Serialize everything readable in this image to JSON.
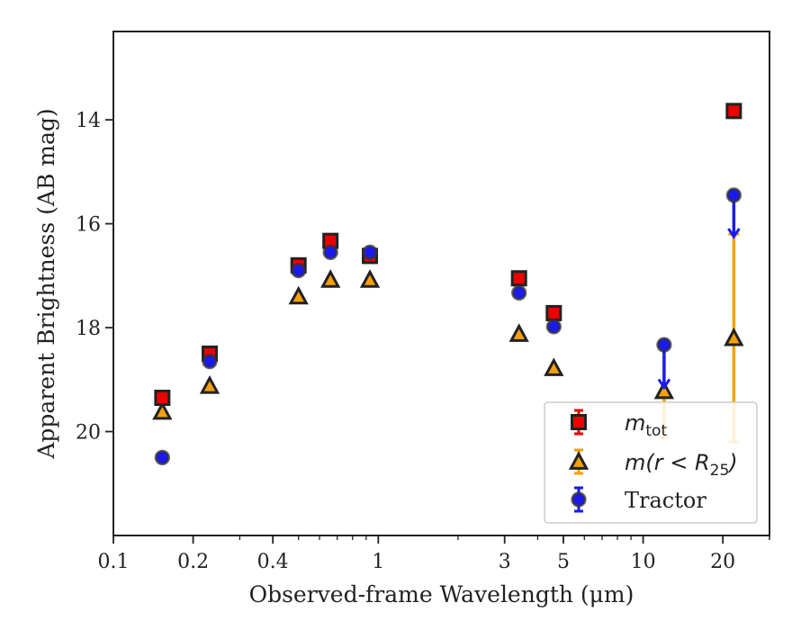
{
  "chart_data": {
    "type": "scatter",
    "xlabel": "Observed-frame Wavelength (μm)",
    "ylabel": "Apparent Brightness (AB mag)",
    "x_scale": "log",
    "xlim": [
      0.1,
      30
    ],
    "ylim": [
      22,
      12.3
    ],
    "y_inverted": true,
    "x_ticks": [
      0.1,
      0.2,
      0.4,
      1,
      3,
      5,
      10,
      20
    ],
    "x_tick_labels": [
      "0.1",
      "0.2",
      "0.4",
      "1",
      "3",
      "5",
      "10",
      "20"
    ],
    "y_ticks": [
      14,
      16,
      18,
      20
    ],
    "y_tick_labels": [
      "14",
      "16",
      "18",
      "20"
    ],
    "legend_position": "lower right",
    "grid": false,
    "series": [
      {
        "name": "m_tot",
        "legend_text": "m",
        "legend_sub": "tot",
        "marker": "square",
        "color": "#ee0000",
        "edgecolor": "#222222",
        "points": [
          {
            "x": 0.153,
            "y": 19.35
          },
          {
            "x": 0.231,
            "y": 18.5
          },
          {
            "x": 0.5,
            "y": 16.8
          },
          {
            "x": 0.66,
            "y": 16.33
          },
          {
            "x": 0.93,
            "y": 16.62
          },
          {
            "x": 3.4,
            "y": 17.05
          },
          {
            "x": 4.6,
            "y": 17.72
          },
          {
            "x": 22.0,
            "y": 13.83
          }
        ]
      },
      {
        "name": "m(r < R25)",
        "legend_text": "m(r < R",
        "legend_sub": "25",
        "legend_tail": ")",
        "marker": "triangle",
        "color": "#f5a00c",
        "edgecolor": "#222222",
        "points": [
          {
            "x": 0.153,
            "y": 19.62
          },
          {
            "x": 0.231,
            "y": 19.12
          },
          {
            "x": 0.5,
            "y": 17.4
          },
          {
            "x": 0.66,
            "y": 17.08
          },
          {
            "x": 0.93,
            "y": 17.08
          },
          {
            "x": 3.4,
            "y": 18.12
          },
          {
            "x": 4.6,
            "y": 18.78
          },
          {
            "x": 12.0,
            "y": 19.22,
            "err_low": 0.0,
            "err_high": 0.9
          },
          {
            "x": 22.0,
            "y": 18.2,
            "err_low": 2.0,
            "err_high": 2.0
          }
        ]
      },
      {
        "name": "Tractor",
        "legend_text": "Tractor",
        "marker": "circle",
        "color": "#1a1aee",
        "edgecolor": "#333333",
        "points": [
          {
            "x": 0.153,
            "y": 20.5
          },
          {
            "x": 0.231,
            "y": 18.65
          },
          {
            "x": 0.5,
            "y": 16.9
          },
          {
            "x": 0.66,
            "y": 16.55
          },
          {
            "x": 0.93,
            "y": 16.55
          },
          {
            "x": 3.4,
            "y": 17.33
          },
          {
            "x": 4.6,
            "y": 17.98
          },
          {
            "x": 12.0,
            "y": 18.33,
            "upper_limit_to": 19.15
          },
          {
            "x": 22.0,
            "y": 15.45,
            "upper_limit_to": 16.25
          }
        ]
      }
    ]
  }
}
